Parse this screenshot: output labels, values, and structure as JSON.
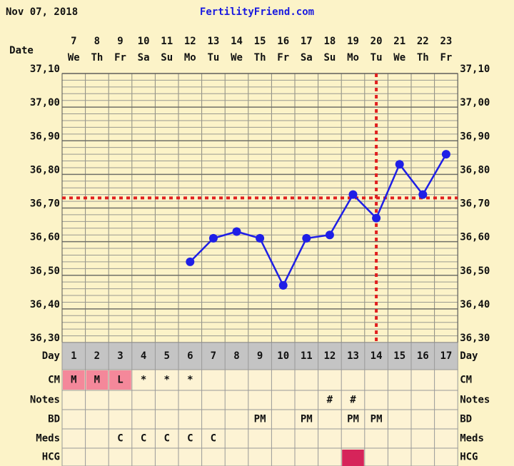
{
  "header": {
    "date": "Nov 07, 2018",
    "site": "FertilityFriend.com"
  },
  "chart_data": {
    "type": "line",
    "x_label": "Date",
    "categories": [
      "7",
      "8",
      "9",
      "10",
      "11",
      "12",
      "13",
      "14",
      "15",
      "16",
      "17",
      "18",
      "19",
      "20",
      "21",
      "22",
      "23"
    ],
    "weekdays": [
      "We",
      "Th",
      "Fr",
      "Sa",
      "Su",
      "Mo",
      "Tu",
      "We",
      "Th",
      "Fr",
      "Sa",
      "Su",
      "Mo",
      "Tu",
      "We",
      "Th",
      "Fr"
    ],
    "values": [
      null,
      null,
      null,
      null,
      null,
      36.54,
      36.61,
      36.63,
      36.61,
      36.47,
      36.61,
      36.62,
      36.74,
      36.67,
      36.83,
      36.74,
      36.86
    ],
    "color": "#1f1fe6",
    "coverline": 36.73,
    "ovulation_day": 14,
    "marker_color": "#e02020",
    "ylim": [
      36.3,
      37.1
    ],
    "yticks": [
      {
        "value": 36.3,
        "label": "36,30"
      },
      {
        "value": 36.4,
        "label": "36,40"
      },
      {
        "value": 36.5,
        "label": "36,50"
      },
      {
        "value": 36.6,
        "label": "36,60"
      },
      {
        "value": 36.7,
        "label": "36,70"
      },
      {
        "value": 36.8,
        "label": "36,80"
      },
      {
        "value": 36.9,
        "label": "36,90"
      },
      {
        "value": 37.0,
        "label": "37,00"
      },
      {
        "value": 37.1,
        "label": "37,10"
      }
    ],
    "grid": true
  },
  "table": {
    "rows": [
      {
        "label": "Day",
        "cells": [
          "1",
          "2",
          "3",
          "4",
          "5",
          "6",
          "7",
          "8",
          "9",
          "10",
          "11",
          "12",
          "13",
          "14",
          "15",
          "16",
          "17"
        ]
      },
      {
        "label": "CM",
        "cells": [
          "M",
          "M",
          "L",
          "*",
          "*",
          "*",
          null,
          null,
          null,
          null,
          null,
          null,
          null,
          null,
          null,
          null,
          null
        ],
        "cell_colors": {
          "M": "#f4889a",
          "L": "#f4889a"
        }
      },
      {
        "label": "Notes",
        "cells": [
          null,
          null,
          null,
          null,
          null,
          null,
          null,
          null,
          null,
          null,
          null,
          "#",
          "#",
          null,
          null,
          null,
          null
        ]
      },
      {
        "label": "BD",
        "cells": [
          null,
          null,
          null,
          null,
          null,
          null,
          null,
          null,
          "PM",
          null,
          "PM",
          null,
          "PM",
          "PM",
          null,
          null,
          null
        ]
      },
      {
        "label": "Meds",
        "cells": [
          null,
          null,
          "C",
          "C",
          "C",
          "C",
          "C",
          null,
          null,
          null,
          null,
          null,
          null,
          null,
          null,
          null,
          null
        ]
      },
      {
        "label": "HCG",
        "cells": [
          null,
          null,
          null,
          null,
          null,
          null,
          null,
          null,
          null,
          null,
          null,
          null,
          null,
          null,
          null,
          null,
          null
        ],
        "marked_day": 13,
        "mark_color": "#d6245a"
      }
    ]
  }
}
